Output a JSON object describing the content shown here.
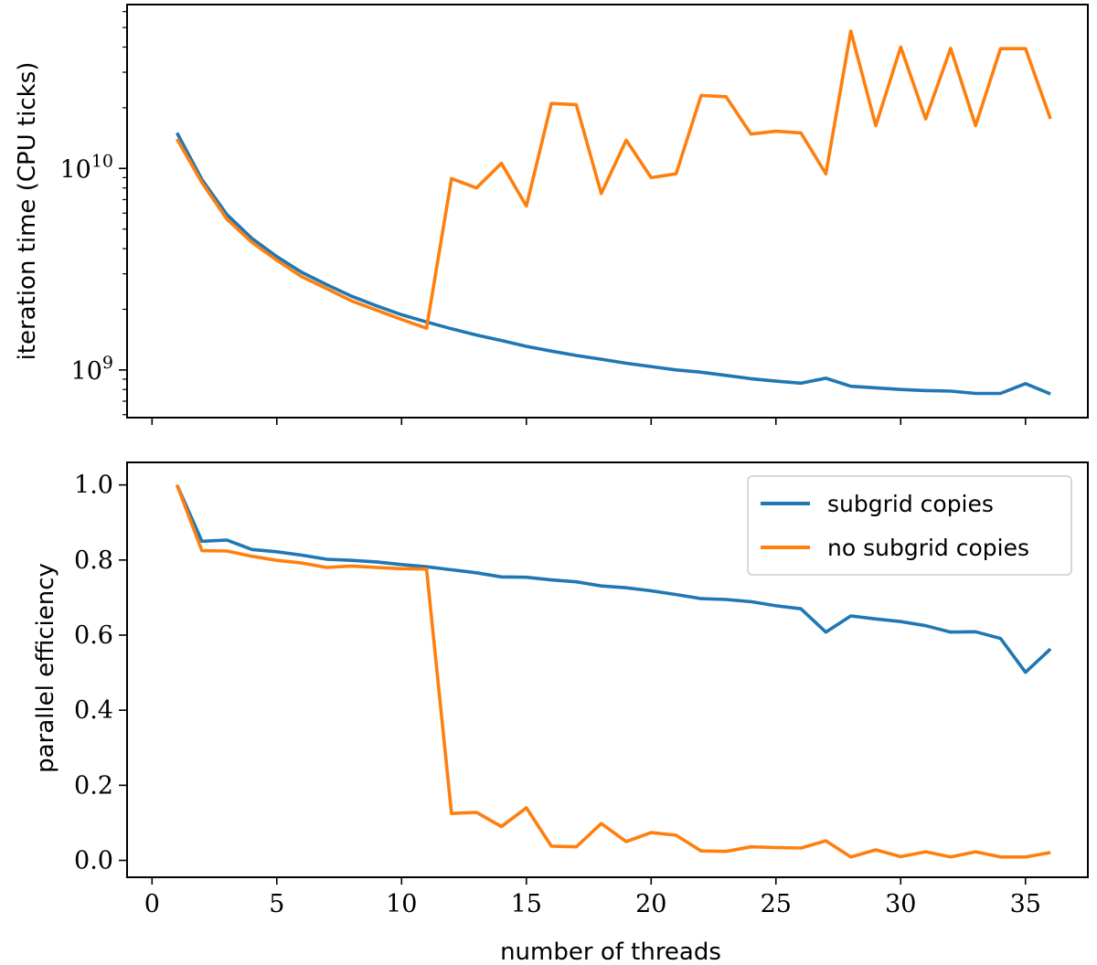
{
  "chart_data": [
    {
      "type": "line",
      "xlabel": "",
      "ylabel": "iteration time (CPU ticks)",
      "yscale": "log",
      "ylim": [
        580000000,
        65000000000
      ],
      "xlim": [
        -1,
        37.5
      ],
      "xticks": [
        0,
        5,
        10,
        15,
        20,
        25,
        30,
        35
      ],
      "yticks": [
        {
          "value": 1000000000,
          "base": "10",
          "exp": "9"
        },
        {
          "value": 10000000000,
          "base": "10",
          "exp": "10"
        }
      ],
      "grid": false,
      "x": [
        1,
        2,
        3,
        4,
        5,
        6,
        7,
        8,
        9,
        10,
        11,
        12,
        13,
        14,
        15,
        16,
        17,
        18,
        19,
        20,
        21,
        22,
        23,
        24,
        25,
        26,
        27,
        28,
        29,
        30,
        31,
        32,
        33,
        34,
        35,
        36
      ],
      "series": [
        {
          "name": "subgrid copies",
          "color": "#1f77b4",
          "values": [
            15000000000,
            8800000000,
            5900000000,
            4500000000,
            3650000000,
            3050000000,
            2650000000,
            2320000000,
            2080000000,
            1880000000,
            1730000000,
            1600000000,
            1490000000,
            1400000000,
            1310000000,
            1240000000,
            1180000000,
            1130000000,
            1080000000,
            1040000000,
            1000000000,
            975000000,
            940000000,
            905000000,
            880000000,
            860000000,
            910000000,
            830000000,
            815000000,
            800000000,
            790000000,
            785000000,
            765000000,
            765000000,
            855000000,
            760000000
          ]
        },
        {
          "name": "no subgrid copies",
          "color": "#ff7f0e",
          "values": [
            14000000000,
            8500000000,
            5600000000,
            4300000000,
            3500000000,
            2900000000,
            2530000000,
            2200000000,
            1980000000,
            1780000000,
            1610000000,
            8900000000,
            8000000000,
            10600000000,
            6500000000,
            21000000000,
            20700000000,
            7500000000,
            13800000000,
            9000000000,
            9400000000,
            23000000000,
            22700000000,
            14800000000,
            15300000000,
            15000000000,
            9400000000,
            48000000000,
            16300000000,
            40000000000,
            17600000000,
            39400000000,
            16300000000,
            39300000000,
            39300000000,
            17600000000
          ]
        }
      ]
    },
    {
      "type": "line",
      "xlabel": "number of threads",
      "ylabel": "parallel efficiency",
      "ylim": [
        -0.045,
        1.06
      ],
      "xlim": [
        -1,
        37.5
      ],
      "xticks": [
        0,
        5,
        10,
        15,
        20,
        25,
        30,
        35
      ],
      "yticks": [
        "0.0",
        "0.2",
        "0.4",
        "0.6",
        "0.8",
        "1.0"
      ],
      "grid": false,
      "legend_position": "top-right",
      "x": [
        1,
        2,
        3,
        4,
        5,
        6,
        7,
        8,
        9,
        10,
        11,
        12,
        13,
        14,
        15,
        16,
        17,
        18,
        19,
        20,
        21,
        22,
        23,
        24,
        25,
        26,
        27,
        28,
        29,
        30,
        31,
        32,
        33,
        34,
        35,
        36
      ],
      "series": [
        {
          "name": "subgrid copies",
          "color": "#1f77b4",
          "values": [
            1.0,
            0.85,
            0.853,
            0.828,
            0.822,
            0.813,
            0.802,
            0.799,
            0.795,
            0.788,
            0.782,
            0.774,
            0.766,
            0.755,
            0.754,
            0.747,
            0.742,
            0.731,
            0.726,
            0.718,
            0.708,
            0.697,
            0.695,
            0.689,
            0.678,
            0.67,
            0.608,
            0.651,
            0.643,
            0.636,
            0.625,
            0.608,
            0.609,
            0.591,
            0.501,
            0.563
          ]
        },
        {
          "name": "no subgrid copies",
          "color": "#ff7f0e",
          "values": [
            1.0,
            0.825,
            0.824,
            0.81,
            0.799,
            0.792,
            0.78,
            0.784,
            0.78,
            0.777,
            0.776,
            0.125,
            0.128,
            0.09,
            0.14,
            0.038,
            0.036,
            0.098,
            0.05,
            0.074,
            0.067,
            0.025,
            0.024,
            0.036,
            0.034,
            0.033,
            0.052,
            0.009,
            0.028,
            0.01,
            0.023,
            0.009,
            0.023,
            0.009,
            0.009,
            0.021
          ]
        }
      ]
    }
  ]
}
